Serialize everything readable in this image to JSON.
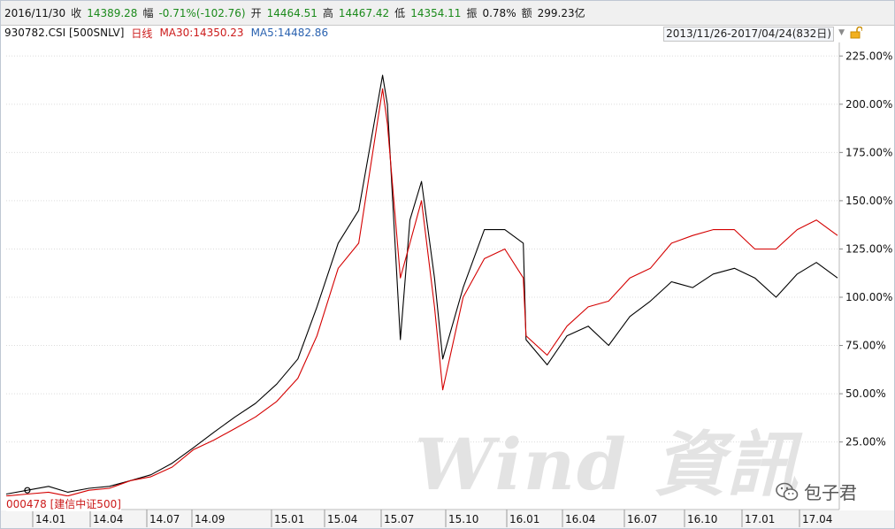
{
  "header": {
    "date": "2016/11/30",
    "close_label": "收",
    "close_value": "14389.28",
    "change_label": "幅",
    "change_value": "-0.71%(-102.76)",
    "open_label": "开",
    "open_value": "14464.51",
    "high_label": "高",
    "high_value": "14467.42",
    "low_label": "低",
    "low_value": "14354.11",
    "amp_label": "振",
    "amp_value": "0.78%",
    "amount_label": "额",
    "amount_value": "299.23亿"
  },
  "subheader": {
    "code": "930782.CSI [500SNLV]",
    "period": "日线",
    "ma30": "MA30:14350.23",
    "ma5": "MA5:14482.86",
    "range": "2013/11/26-2017/04/24(832日)"
  },
  "overlay_label": "000478 [建信中证500]",
  "wechat_account": "包子君",
  "watermark_text": "Wind 資訊",
  "colors": {
    "series_black": "#000000",
    "series_red": "#d40000",
    "grid": "#dcdcdc",
    "header_green": "#1b8a1b"
  },
  "chart_data": {
    "type": "line",
    "title": "",
    "xlabel": "",
    "ylabel": "",
    "y_unit": "%",
    "ylim": [
      -10,
      232
    ],
    "y_ticks": [
      25,
      50,
      75,
      100,
      125,
      150,
      175,
      200,
      225
    ],
    "y_tick_labels": [
      "25.00%",
      "50.00%",
      "75.00%",
      "100.00%",
      "125.00%",
      "150.00%",
      "175.00%",
      "200.00%",
      "225.00%"
    ],
    "x_ticks": [
      "14.01",
      "14.04",
      "14.07",
      "14.09",
      "15.01",
      "15.04",
      "15.07",
      "15.10",
      "16.01",
      "16.04",
      "16.07",
      "16.10",
      "17.01",
      "17.04"
    ],
    "x": [
      "2013-12",
      "2014-01",
      "2014-02",
      "2014-03",
      "2014-04",
      "2014-05",
      "2014-06",
      "2014-07",
      "2014-08",
      "2014-09",
      "2014-10",
      "2014-11",
      "2014-12",
      "2015-01",
      "2015-02",
      "2015-03",
      "2015-04",
      "2015-05",
      "2015-06-05",
      "2015-06-12",
      "2015-07",
      "2015-07-15",
      "2015-08",
      "2015-08-20",
      "2015-09",
      "2015-10",
      "2015-11",
      "2015-12",
      "2015-12-28",
      "2016-01",
      "2016-02",
      "2016-03",
      "2016-04",
      "2016-05",
      "2016-06",
      "2016-07",
      "2016-08",
      "2016-09",
      "2016-10",
      "2016-11",
      "2016-12",
      "2017-01",
      "2017-02",
      "2017-03",
      "2017-04"
    ],
    "series": [
      {
        "values": [
          -2,
          0,
          2,
          -1,
          1,
          2,
          5,
          8,
          14,
          22,
          30,
          38,
          45,
          55,
          68,
          95,
          128,
          145,
          215,
          200,
          78,
          140,
          160,
          110,
          68,
          105,
          135,
          135,
          128,
          78,
          65,
          80,
          85,
          75,
          90,
          98,
          108,
          105,
          112,
          115,
          110,
          100,
          112,
          118,
          110
        ]
      },
      {
        "values": [
          -3,
          -2,
          -1,
          -3,
          0,
          1,
          5,
          7,
          12,
          21,
          26,
          32,
          38,
          46,
          58,
          80,
          115,
          128,
          208,
          190,
          110,
          128,
          150,
          95,
          52,
          100,
          120,
          125,
          110,
          80,
          70,
          85,
          95,
          98,
          110,
          115,
          128,
          132,
          135,
          135,
          125,
          125,
          135,
          140,
          132
        ]
      }
    ]
  }
}
